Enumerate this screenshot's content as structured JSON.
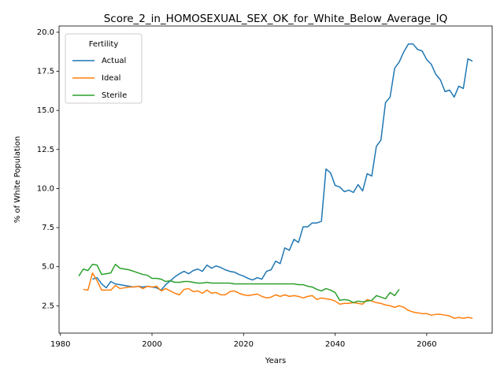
{
  "chart_data": {
    "type": "line",
    "title": "Score_2_in_HOMOSEXUAL_SEX_OK_for_White_Below_Average_IQ",
    "xlabel": "Years",
    "ylabel": "% of White Population",
    "legend_title": "Fertility",
    "legend_loc": "upper left",
    "grid": false,
    "xlim": [
      1979.7,
      2074.3
    ],
    "ylim": [
      0.75,
      20.4
    ],
    "xticks": [
      1980,
      2000,
      2020,
      2040,
      2060
    ],
    "yticks": [
      2.5,
      {
        "value": 5,
        "label": "5.0"
      },
      7.5,
      {
        "value": 10,
        "label": "10.0"
      },
      12.5,
      {
        "value": 15,
        "label": "15.0"
      },
      17.5,
      {
        "value": 20,
        "label": "20.0"
      }
    ],
    "x": [
      1984,
      1985,
      1986,
      1987,
      1988,
      1989,
      1990,
      1991,
      1992,
      1993,
      1994,
      1995,
      1996,
      1997,
      1998,
      1999,
      2000,
      2001,
      2002,
      2003,
      2004,
      2005,
      2006,
      2007,
      2008,
      2009,
      2010,
      2011,
      2012,
      2013,
      2014,
      2015,
      2016,
      2017,
      2018,
      2019,
      2020,
      2021,
      2022,
      2023,
      2024,
      2025,
      2026,
      2027,
      2028,
      2029,
      2030,
      2031,
      2032,
      2033,
      2034,
      2035,
      2036,
      2037,
      2038,
      2039,
      2040,
      2041,
      2042,
      2043,
      2044,
      2045,
      2046,
      2047,
      2048,
      2049,
      2050,
      2051,
      2052,
      2053,
      2054,
      2055,
      2056,
      2057,
      2058,
      2059,
      2060,
      2061,
      2062,
      2063,
      2064,
      2065,
      2066,
      2067,
      2068,
      2069,
      2070
    ],
    "series": [
      {
        "name": "Actual",
        "color": "#1f77b4",
        "values": [
          null,
          null,
          null,
          4.2,
          4.3,
          3.9,
          3.65,
          4.05,
          3.9,
          3.85,
          3.8,
          3.75,
          3.7,
          3.75,
          3.7,
          3.75,
          3.7,
          3.65,
          3.5,
          3.85,
          4.1,
          4.35,
          4.55,
          4.7,
          4.55,
          4.75,
          4.85,
          4.7,
          5.1,
          4.9,
          5.05,
          4.95,
          4.8,
          4.7,
          4.65,
          4.5,
          4.4,
          4.25,
          4.15,
          4.3,
          4.2,
          4.7,
          4.8,
          5.35,
          5.2,
          6.2,
          6.05,
          6.75,
          6.55,
          7.55,
          7.55,
          7.8,
          7.8,
          7.9,
          11.25,
          11.0,
          10.2,
          10.1,
          9.8,
          9.9,
          9.75,
          10.25,
          9.85,
          10.95,
          10.8,
          12.7,
          13.1,
          15.5,
          15.85,
          17.7,
          18.1,
          18.75,
          19.25,
          19.25,
          18.9,
          18.8,
          18.25,
          17.95,
          17.3,
          16.95,
          16.2,
          16.3,
          15.85,
          16.55,
          16.4,
          18.3,
          18.15
        ]
      },
      {
        "name": "Ideal",
        "color": "#ff7f0e",
        "values": [
          null,
          3.55,
          3.5,
          4.6,
          4.1,
          3.5,
          3.5,
          3.5,
          3.8,
          3.6,
          3.65,
          3.7,
          3.7,
          3.75,
          3.6,
          3.75,
          3.7,
          3.75,
          3.45,
          3.6,
          3.45,
          3.3,
          3.2,
          3.55,
          3.6,
          3.4,
          3.45,
          3.3,
          3.5,
          3.3,
          3.35,
          3.2,
          3.2,
          3.4,
          3.45,
          3.3,
          3.2,
          3.15,
          3.2,
          3.25,
          3.1,
          3.0,
          3.05,
          3.2,
          3.1,
          3.2,
          3.1,
          3.15,
          3.1,
          3.0,
          3.1,
          3.15,
          2.9,
          3.0,
          2.95,
          2.9,
          2.8,
          2.6,
          2.65,
          2.65,
          2.7,
          2.65,
          2.6,
          2.9,
          2.8,
          2.7,
          2.65,
          2.55,
          2.5,
          2.4,
          2.5,
          2.4,
          2.2,
          2.1,
          2.05,
          2.0,
          2.0,
          1.9,
          1.95,
          1.95,
          1.9,
          1.85,
          1.7,
          1.75,
          1.7,
          1.75,
          1.7
        ]
      },
      {
        "name": "Sterile",
        "color": "#2ca02c",
        "values": [
          4.4,
          4.85,
          4.75,
          5.15,
          5.1,
          4.5,
          4.55,
          4.6,
          5.15,
          4.9,
          4.85,
          4.8,
          4.7,
          4.6,
          4.5,
          4.45,
          4.25,
          4.25,
          4.2,
          4.05,
          4.1,
          4.0,
          4.0,
          4.05,
          4.05,
          4.0,
          3.95,
          3.95,
          4.0,
          3.95,
          3.95,
          3.95,
          3.95,
          3.95,
          3.9,
          3.9,
          3.9,
          3.9,
          3.9,
          3.9,
          3.9,
          3.9,
          3.9,
          3.9,
          3.9,
          3.9,
          3.9,
          3.9,
          3.85,
          3.85,
          3.75,
          3.7,
          3.55,
          3.45,
          3.6,
          3.5,
          3.35,
          2.85,
          2.9,
          2.85,
          2.7,
          2.8,
          2.75,
          2.8,
          2.85,
          3.15,
          3.05,
          2.95,
          3.35,
          3.15,
          3.55,
          null,
          null,
          null,
          null,
          null,
          null,
          null,
          null,
          null,
          null,
          null,
          null,
          null,
          null,
          null,
          null
        ]
      }
    ]
  }
}
